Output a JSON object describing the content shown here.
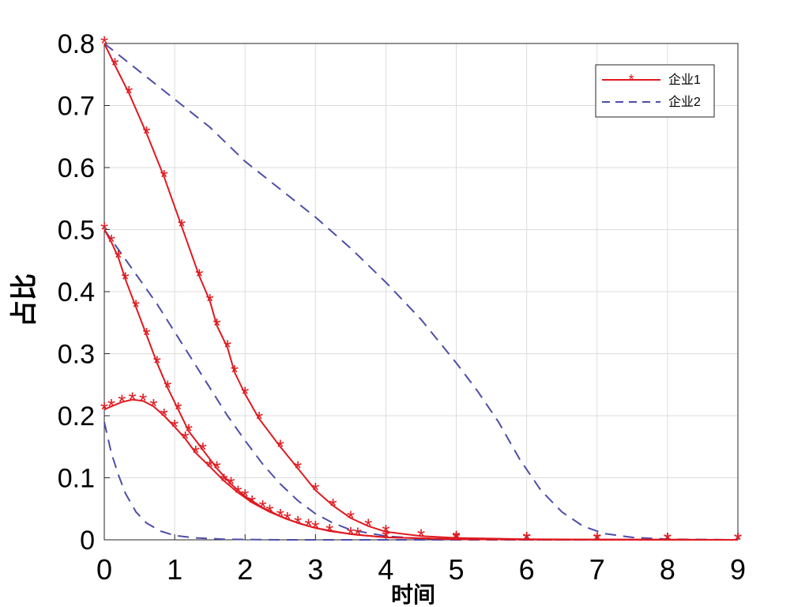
{
  "chart_data": {
    "type": "line",
    "xlabel": "时间",
    "ylabel": "占比",
    "xlim": [
      0,
      9
    ],
    "ylim": [
      0,
      0.8
    ],
    "xticks": [
      "0",
      "1",
      "2",
      "3",
      "4",
      "5",
      "6",
      "7",
      "8",
      "9"
    ],
    "yticks": [
      "0",
      "0.1",
      "0.2",
      "0.3",
      "0.4",
      "0.5",
      "0.6",
      "0.7",
      "0.8"
    ],
    "grid": true,
    "legend_position": "top-right",
    "legend": [
      "企业1",
      "企业2"
    ],
    "series": [
      {
        "name": "企业1",
        "color": "#e0191f",
        "style": "solid-star",
        "curves": [
          [
            [
              0,
              0.8
            ],
            [
              0.15,
              0.765
            ],
            [
              0.35,
              0.72
            ],
            [
              0.6,
              0.655
            ],
            [
              0.85,
              0.585
            ],
            [
              1.1,
              0.505
            ],
            [
              1.35,
              0.425
            ],
            [
              1.5,
              0.385
            ],
            [
              1.6,
              0.345
            ],
            [
              1.75,
              0.31
            ],
            [
              1.85,
              0.27
            ],
            [
              2.0,
              0.235
            ],
            [
              2.2,
              0.195
            ],
            [
              2.5,
              0.15
            ],
            [
              2.75,
              0.115
            ],
            [
              3.0,
              0.08
            ],
            [
              3.25,
              0.055
            ],
            [
              3.5,
              0.035
            ],
            [
              3.75,
              0.022
            ],
            [
              4.0,
              0.013
            ],
            [
              4.5,
              0.006
            ],
            [
              5.0,
              0.003
            ],
            [
              6.0,
              0.001
            ],
            [
              7.0,
              0.0005
            ],
            [
              8.0,
              0.0002
            ],
            [
              9.0,
              0.0
            ]
          ],
          [
            [
              0,
              0.5
            ],
            [
              0.1,
              0.48
            ],
            [
              0.2,
              0.455
            ],
            [
              0.3,
              0.42
            ],
            [
              0.45,
              0.375
            ],
            [
              0.6,
              0.33
            ],
            [
              0.75,
              0.285
            ],
            [
              0.9,
              0.245
            ],
            [
              1.05,
              0.21
            ],
            [
              1.2,
              0.175
            ],
            [
              1.4,
              0.145
            ],
            [
              1.6,
              0.115
            ],
            [
              1.8,
              0.09
            ],
            [
              2.0,
              0.07
            ],
            [
              2.25,
              0.052
            ],
            [
              2.5,
              0.038
            ],
            [
              2.75,
              0.027
            ],
            [
              3.0,
              0.019
            ],
            [
              3.5,
              0.009
            ],
            [
              4.0,
              0.004
            ],
            [
              5.0,
              0.001
            ],
            [
              6.0,
              0.0005
            ],
            [
              7.0,
              0.0002
            ],
            [
              8.0,
              0.0001
            ],
            [
              9.0,
              0.0
            ]
          ],
          [
            [
              0,
              0.21
            ],
            [
              0.1,
              0.215
            ],
            [
              0.25,
              0.222
            ],
            [
              0.4,
              0.226
            ],
            [
              0.55,
              0.224
            ],
            [
              0.7,
              0.215
            ],
            [
              0.85,
              0.2
            ],
            [
              1.0,
              0.182
            ],
            [
              1.15,
              0.163
            ],
            [
              1.3,
              0.14
            ],
            [
              1.5,
              0.118
            ],
            [
              1.7,
              0.095
            ],
            [
              1.9,
              0.076
            ],
            [
              2.1,
              0.06
            ],
            [
              2.35,
              0.045
            ],
            [
              2.6,
              0.033
            ],
            [
              2.9,
              0.022
            ],
            [
              3.2,
              0.014
            ],
            [
              3.6,
              0.008
            ],
            [
              4.0,
              0.004
            ],
            [
              5.0,
              0.001
            ],
            [
              6.0,
              0.0005
            ],
            [
              7.0,
              0.0002
            ],
            [
              8.0,
              0.0001
            ],
            [
              9.0,
              0.0
            ]
          ]
        ]
      },
      {
        "name": "企业2",
        "color": "#4d4da8",
        "style": "dashed",
        "curves": [
          [
            [
              0,
              0.8
            ],
            [
              0.5,
              0.755
            ],
            [
              1.0,
              0.71
            ],
            [
              1.5,
              0.665
            ],
            [
              2.0,
              0.61
            ],
            [
              2.5,
              0.565
            ],
            [
              3.0,
              0.52
            ],
            [
              3.5,
              0.47
            ],
            [
              4.0,
              0.415
            ],
            [
              4.5,
              0.355
            ],
            [
              5.0,
              0.285
            ],
            [
              5.3,
              0.24
            ],
            [
              5.6,
              0.19
            ],
            [
              5.9,
              0.13
            ],
            [
              6.2,
              0.08
            ],
            [
              6.5,
              0.045
            ],
            [
              6.8,
              0.022
            ],
            [
              7.1,
              0.01
            ],
            [
              7.5,
              0.004
            ],
            [
              8.0,
              0.001
            ],
            [
              9.0,
              0.0
            ]
          ],
          [
            [
              0,
              0.5
            ],
            [
              0.25,
              0.46
            ],
            [
              0.5,
              0.42
            ],
            [
              0.75,
              0.38
            ],
            [
              1.0,
              0.335
            ],
            [
              1.25,
              0.29
            ],
            [
              1.5,
              0.245
            ],
            [
              1.75,
              0.2
            ],
            [
              2.0,
              0.16
            ],
            [
              2.25,
              0.122
            ],
            [
              2.5,
              0.09
            ],
            [
              2.75,
              0.063
            ],
            [
              3.0,
              0.042
            ],
            [
              3.25,
              0.027
            ],
            [
              3.5,
              0.016
            ],
            [
              4.0,
              0.006
            ],
            [
              4.5,
              0.002
            ],
            [
              5.0,
              0.001
            ],
            [
              6.0,
              0.0
            ],
            [
              9.0,
              0.0
            ]
          ],
          [
            [
              0,
              0.19
            ],
            [
              0.1,
              0.14
            ],
            [
              0.2,
              0.105
            ],
            [
              0.3,
              0.075
            ],
            [
              0.45,
              0.045
            ],
            [
              0.6,
              0.027
            ],
            [
              0.8,
              0.014
            ],
            [
              1.0,
              0.007
            ],
            [
              1.3,
              0.003
            ],
            [
              1.7,
              0.001
            ],
            [
              2.5,
              0.0
            ],
            [
              9.0,
              0.0
            ]
          ]
        ]
      }
    ]
  }
}
